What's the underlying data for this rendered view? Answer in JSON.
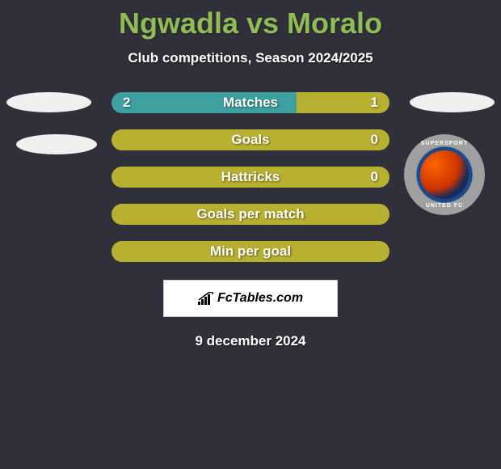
{
  "title": "Ngwadla vs Moralo",
  "subtitle": "Club competitions, Season 2024/2025",
  "date": "9 december 2024",
  "footer_brand": "FcTables.com",
  "colors": {
    "background": "#30303a",
    "title_color": "#8fbc54",
    "text_color": "#ffffff",
    "bar_teal": "#3fa0a0",
    "bar_olive": "#b8b030"
  },
  "stats": [
    {
      "label": "Matches",
      "left_value": "2",
      "right_value": "1",
      "left_pct": 66.7,
      "right_pct": 33.3,
      "left_color": "#3fa0a0",
      "right_color": "#b8b030"
    },
    {
      "label": "Goals",
      "left_value": "",
      "right_value": "0",
      "left_pct": 100,
      "right_pct": 0,
      "left_color": "#b8b030",
      "right_color": "#b8b030"
    },
    {
      "label": "Hattricks",
      "left_value": "",
      "right_value": "0",
      "left_pct": 100,
      "right_pct": 0,
      "left_color": "#b8b030",
      "right_color": "#b8b030"
    },
    {
      "label": "Goals per match",
      "left_value": "",
      "right_value": "",
      "left_pct": 100,
      "right_pct": 0,
      "left_color": "#b8b030",
      "right_color": "#b8b030"
    },
    {
      "label": "Min per goal",
      "left_value": "",
      "right_value": "",
      "left_pct": 100,
      "right_pct": 0,
      "left_color": "#b8b030",
      "right_color": "#b8b030"
    }
  ],
  "right_club": {
    "name_top": "SUPERSPORT",
    "name_bottom": "UNITED FC"
  }
}
